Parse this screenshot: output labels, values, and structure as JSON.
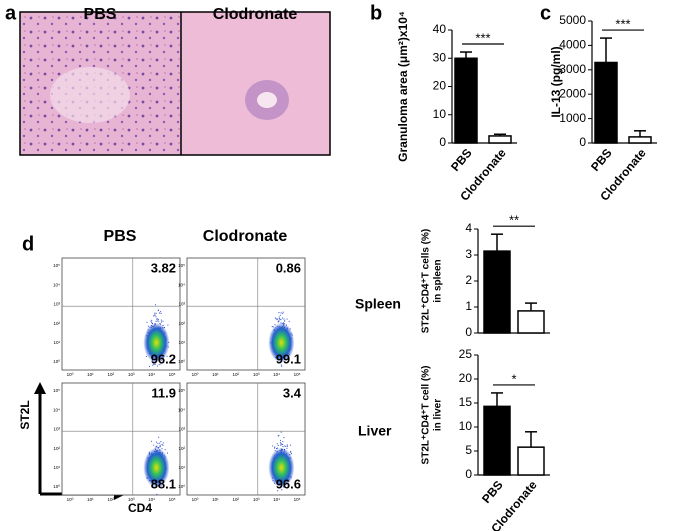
{
  "panels": [
    "a",
    "b",
    "c",
    "d"
  ],
  "histology": {
    "labels": [
      "PBS",
      "Clodronate"
    ]
  },
  "flow": {
    "columns": [
      "PBS",
      "Clodronate"
    ],
    "x_label": "CD4",
    "y_label": "ST2L",
    "ticks": [
      "10⁰",
      "10¹",
      "10²",
      "10³",
      "10⁴",
      "10⁵"
    ],
    "rows": [
      {
        "name": "Spleen",
        "quadrants": [
          [
            3.82,
            96.2
          ],
          [
            0.86,
            99.1
          ]
        ]
      },
      {
        "name": "Liver",
        "quadrants": [
          [
            11.9,
            88.1
          ],
          [
            3.4,
            96.6
          ]
        ]
      }
    ]
  },
  "chart_data": [
    {
      "type": "bar",
      "ylabel": [
        "Granuloma area (μm²)x10⁴"
      ],
      "categories": [
        "PBS",
        "Clodronate"
      ],
      "values": [
        30,
        2.5
      ],
      "errors": [
        2.2,
        0.6
      ],
      "colors": [
        "#000000",
        "#ffffff"
      ],
      "ylim": [
        0,
        40
      ],
      "yticks": [
        0,
        10,
        20,
        30,
        40
      ],
      "significance": "***"
    },
    {
      "type": "bar",
      "ylabel": [
        "IL-13 (pg/ml)"
      ],
      "categories": [
        "PBS",
        "Clodronate"
      ],
      "values": [
        3300,
        250
      ],
      "errors": [
        1000,
        250
      ],
      "colors": [
        "#000000",
        "#ffffff"
      ],
      "ylim": [
        0,
        5000
      ],
      "yticks": [
        0,
        1000,
        2000,
        3000,
        4000,
        5000
      ],
      "significance": "***"
    },
    {
      "type": "bar",
      "ylabel": [
        "ST2L⁺CD4⁺T cells (%)",
        "in spleen"
      ],
      "categories": [
        null,
        null
      ],
      "values": [
        3.15,
        0.85
      ],
      "errors": [
        0.65,
        0.3
      ],
      "colors": [
        "#000000",
        "#ffffff"
      ],
      "ylim": [
        0,
        4
      ],
      "yticks": [
        0,
        1,
        2,
        3,
        4
      ],
      "significance": "**"
    },
    {
      "type": "bar",
      "ylabel": [
        "ST2L⁺CD4⁺T cell (%)",
        "in liver"
      ],
      "categories": [
        "PBS",
        "Clodronate"
      ],
      "values": [
        14.3,
        5.8
      ],
      "errors": [
        2.8,
        3.2
      ],
      "colors": [
        "#000000",
        "#ffffff"
      ],
      "ylim": [
        0,
        25
      ],
      "yticks": [
        0,
        5,
        10,
        15,
        20,
        25
      ],
      "significance": "*"
    }
  ]
}
